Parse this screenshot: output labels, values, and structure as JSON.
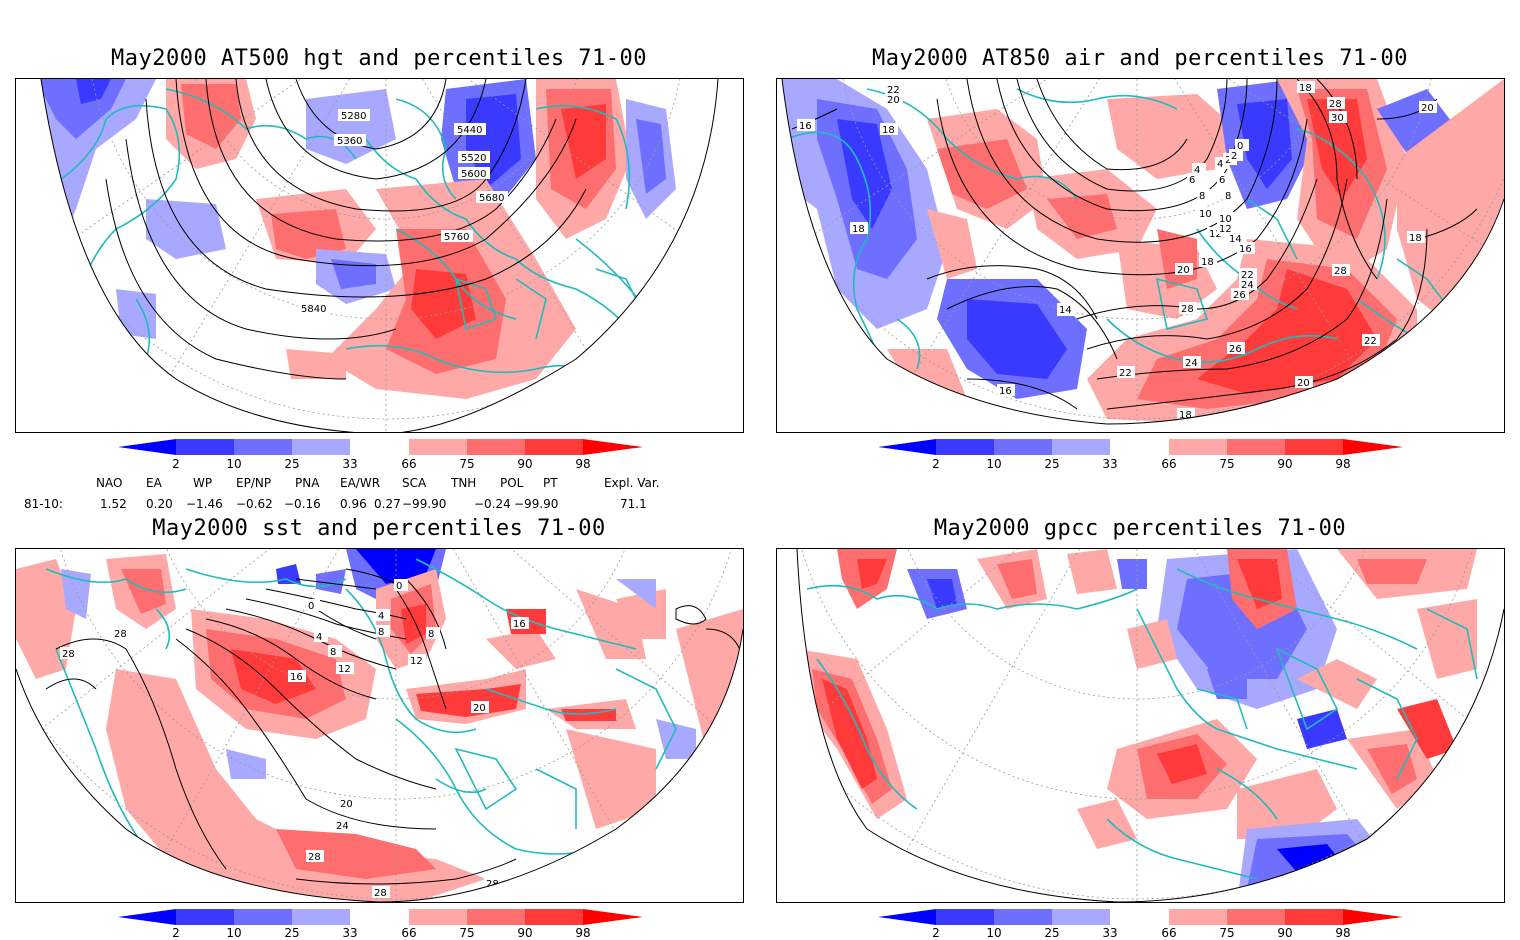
{
  "panels": [
    {
      "id": "hgt500",
      "title": "May2000 AT500 hgt and percentiles 71-00",
      "contour_labels": [
        "5280",
        "5360",
        "5440",
        "5520",
        "5600",
        "5680",
        "5760",
        "5840"
      ]
    },
    {
      "id": "air850",
      "title": "May2000 AT850 air and percentiles 71-00",
      "contour_labels": [
        "22",
        "20",
        "16",
        "18",
        "18",
        "14",
        "12",
        "10",
        "8",
        "6",
        "4",
        "2",
        "0",
        "28",
        "30",
        "20",
        "18",
        "16",
        "14",
        "12",
        "10",
        "8",
        "6",
        "4",
        "2",
        "20",
        "18",
        "22",
        "24",
        "26",
        "28",
        "26",
        "24",
        "22",
        "20",
        "18",
        "14",
        "16",
        "18",
        "22",
        "28"
      ]
    },
    {
      "id": "sst",
      "title": "May2000 sst and percentiles 71-00",
      "contour_labels": [
        "28",
        "28",
        "0",
        "0",
        "4",
        "8",
        "4",
        "8",
        "12",
        "16",
        "16",
        "20",
        "24",
        "28",
        "28",
        "28",
        "20",
        "12",
        "8"
      ]
    },
    {
      "id": "gpcc",
      "title": "May2000 gpcc percentiles 71-00",
      "contour_labels": []
    }
  ],
  "colorbar": {
    "labels": [
      "2",
      "10",
      "25",
      "33",
      "66",
      "75",
      "90",
      "98"
    ],
    "colors": {
      "deep_blue": "#0000ff",
      "blue": "#3a3aff",
      "mid_blue": "#6e6eff",
      "light_blue": "#a8a8ff",
      "light_red": "#ffa8a8",
      "mid_red": "#ff6e6e",
      "red": "#ff3a3a",
      "deep_red": "#ff0000"
    }
  },
  "indices": {
    "headers": [
      "NAO",
      "EA",
      "WP",
      "EP/NP",
      "PNA",
      "EA/WR",
      "SCA",
      "TNH",
      "POL",
      "PT",
      "Expl. Var."
    ],
    "row_label": "81-10:",
    "values": [
      "1.52",
      "0.20",
      "−1.46",
      "−0.62",
      "−0.16",
      "0.96",
      "0.27",
      "−99.90",
      "−0.24",
      "−99.90",
      "71.1"
    ]
  },
  "colors": {
    "coast": "#22bbbb",
    "contour": "#000000",
    "grid": "#9a9a9a"
  }
}
